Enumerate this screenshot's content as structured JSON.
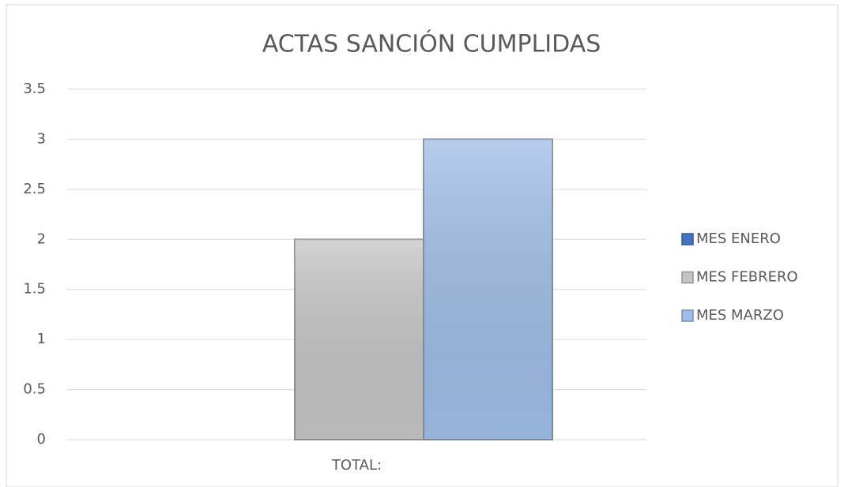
{
  "chart_data": {
    "type": "bar",
    "title": "ACTAS SANCIÓN CUMPLIDAS",
    "categories": [
      "TOTAL:"
    ],
    "series": [
      {
        "name": "MES ENERO",
        "color": "#4472c4",
        "values": [
          0
        ]
      },
      {
        "name": "MES FEBRERO",
        "color": "#c4c4c4",
        "values": [
          2
        ]
      },
      {
        "name": "MES MARZO",
        "color": "#9fbde6",
        "values": [
          3
        ]
      }
    ],
    "ylim": [
      0,
      3.5
    ],
    "yticks": [
      0,
      0.5,
      1,
      1.5,
      2,
      2.5,
      3,
      3.5
    ],
    "grid": true,
    "legend": "right"
  }
}
